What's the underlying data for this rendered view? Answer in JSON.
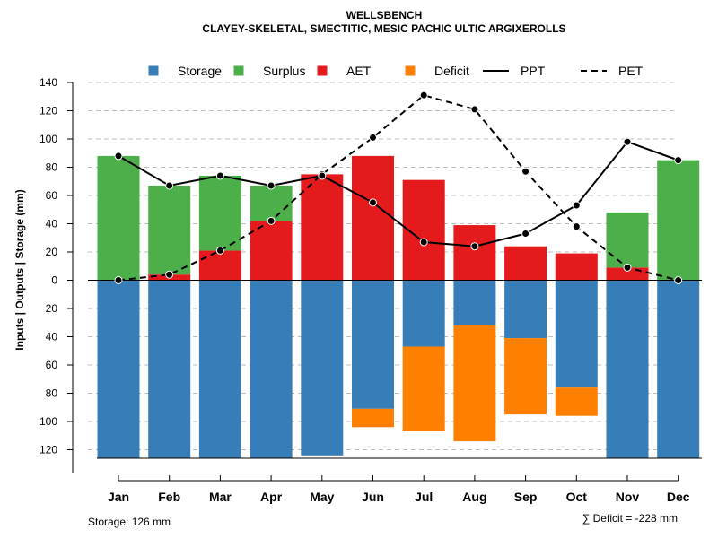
{
  "chart_data": {
    "type": "bar",
    "title": "WELLSBENCH",
    "subtitle": "CLAYEY-SKELETAL, SMECTITIC, MESIC PACHIC ULTIC ARGIXEROLLS",
    "ylabel": "Inputs | Outputs | Storage    (mm)",
    "ylim": [
      -130,
      140
    ],
    "yticks": [
      140,
      120,
      100,
      80,
      60,
      40,
      20,
      0,
      -20,
      -40,
      -60,
      -80,
      -100,
      -120
    ],
    "ytick_labels": [
      "140",
      "120",
      "100",
      "80",
      "60",
      "40",
      "20",
      "0",
      "20",
      "40",
      "60",
      "80",
      "100",
      "120"
    ],
    "grid": true,
    "legend_position": "top",
    "categories": [
      "Jan",
      "Feb",
      "Mar",
      "Apr",
      "May",
      "Jun",
      "Jul",
      "Aug",
      "Sep",
      "Oct",
      "Nov",
      "Dec"
    ],
    "legend": [
      {
        "name": "Storage",
        "kind": "box",
        "color": "#377eb8"
      },
      {
        "name": "Surplus",
        "kind": "box",
        "color": "#4daf4a"
      },
      {
        "name": "AET",
        "kind": "box",
        "color": "#e41a1c"
      },
      {
        "name": "Deficit",
        "kind": "box",
        "color": "#ff7f00"
      },
      {
        "name": "PPT",
        "kind": "solid-line",
        "color": "#000000"
      },
      {
        "name": "PET",
        "kind": "dashed-line",
        "color": "#000000"
      }
    ],
    "series": [
      {
        "name": "AET",
        "color": "#e41a1c",
        "values": [
          0,
          4,
          21,
          42,
          75,
          88,
          71,
          39,
          24,
          19,
          9,
          0
        ]
      },
      {
        "name": "Surplus",
        "color": "#4daf4a",
        "values": [
          88,
          63,
          53,
          25,
          0,
          0,
          0,
          0,
          0,
          0,
          39,
          85
        ]
      },
      {
        "name": "Storage",
        "color": "#377eb8",
        "values": [
          126,
          126,
          126,
          126,
          124,
          91,
          47,
          32,
          41,
          76,
          126,
          126
        ]
      },
      {
        "name": "Deficit",
        "color": "#ff7f00",
        "values": [
          0,
          0,
          0,
          0,
          0,
          13,
          60,
          82,
          54,
          20,
          0,
          0
        ]
      },
      {
        "name": "PPT",
        "color": "#000000",
        "values": [
          88,
          67,
          74,
          67,
          74,
          55,
          27,
          24,
          33,
          53,
          98,
          85
        ]
      },
      {
        "name": "PET",
        "color": "#000000",
        "values": [
          0,
          4,
          21,
          42,
          75,
          101,
          131,
          121,
          77,
          38,
          9,
          0
        ]
      }
    ],
    "storage_note": "Storage: 126 mm",
    "deficit_note": "∑ Deficit = -228 mm"
  }
}
